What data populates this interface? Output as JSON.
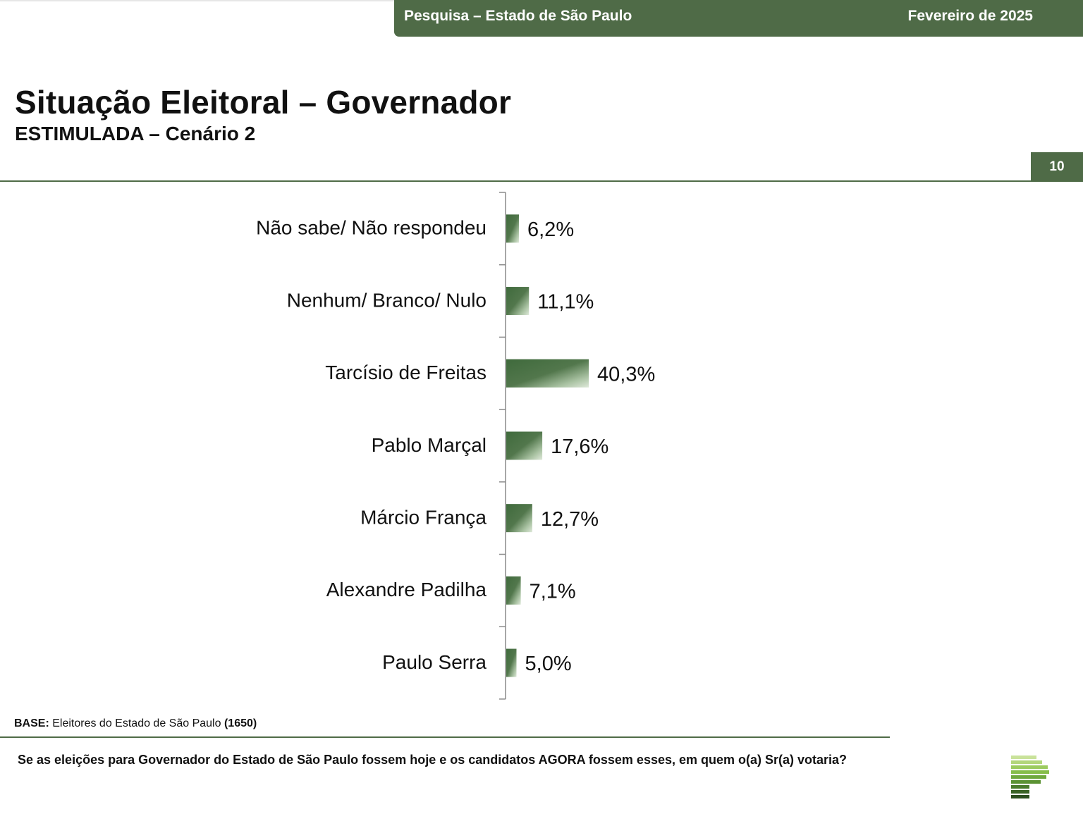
{
  "header": {
    "title": "Pesquisa – Estado de São Paulo",
    "date": "Fevereiro de 2025"
  },
  "page": {
    "title": "Situação Eleitoral – Governador",
    "subtitle": "ESTIMULADA – Cenário 2",
    "number": "10"
  },
  "colors": {
    "brand_green": "#4f6b47",
    "bar_dark": "#3f6a3c",
    "bar_light": "#dfe9da"
  },
  "chart_data": {
    "type": "bar",
    "orientation": "horizontal",
    "title": "",
    "xlabel": "",
    "ylabel": "",
    "categories": [
      "Não sabe/ Não respondeu",
      "Nenhum/ Branco/ Nulo",
      "Tarcísio de Freitas",
      "Pablo Marçal",
      "Márcio França",
      "Alexandre Padilha",
      "Paulo Serra"
    ],
    "values": [
      6.2,
      11.1,
      40.3,
      17.6,
      12.7,
      7.1,
      5.0
    ],
    "value_labels": [
      "6,2%",
      "11,1%",
      "40,3%",
      "17,6%",
      "12,7%",
      "7,1%",
      "5,0%"
    ],
    "unit": "%",
    "grid": false,
    "legend": "none"
  },
  "base": {
    "label": "BASE:",
    "text": "Eleitores do Estado de São Paulo",
    "count": "(1650)"
  },
  "question": "Se as eleições para Governador do Estado de São Paulo fossem hoje e os candidatos AGORA fossem esses, em quem o(a) Sr(a) votaria?",
  "logo": {
    "icon": "pollster-logo-icon"
  }
}
